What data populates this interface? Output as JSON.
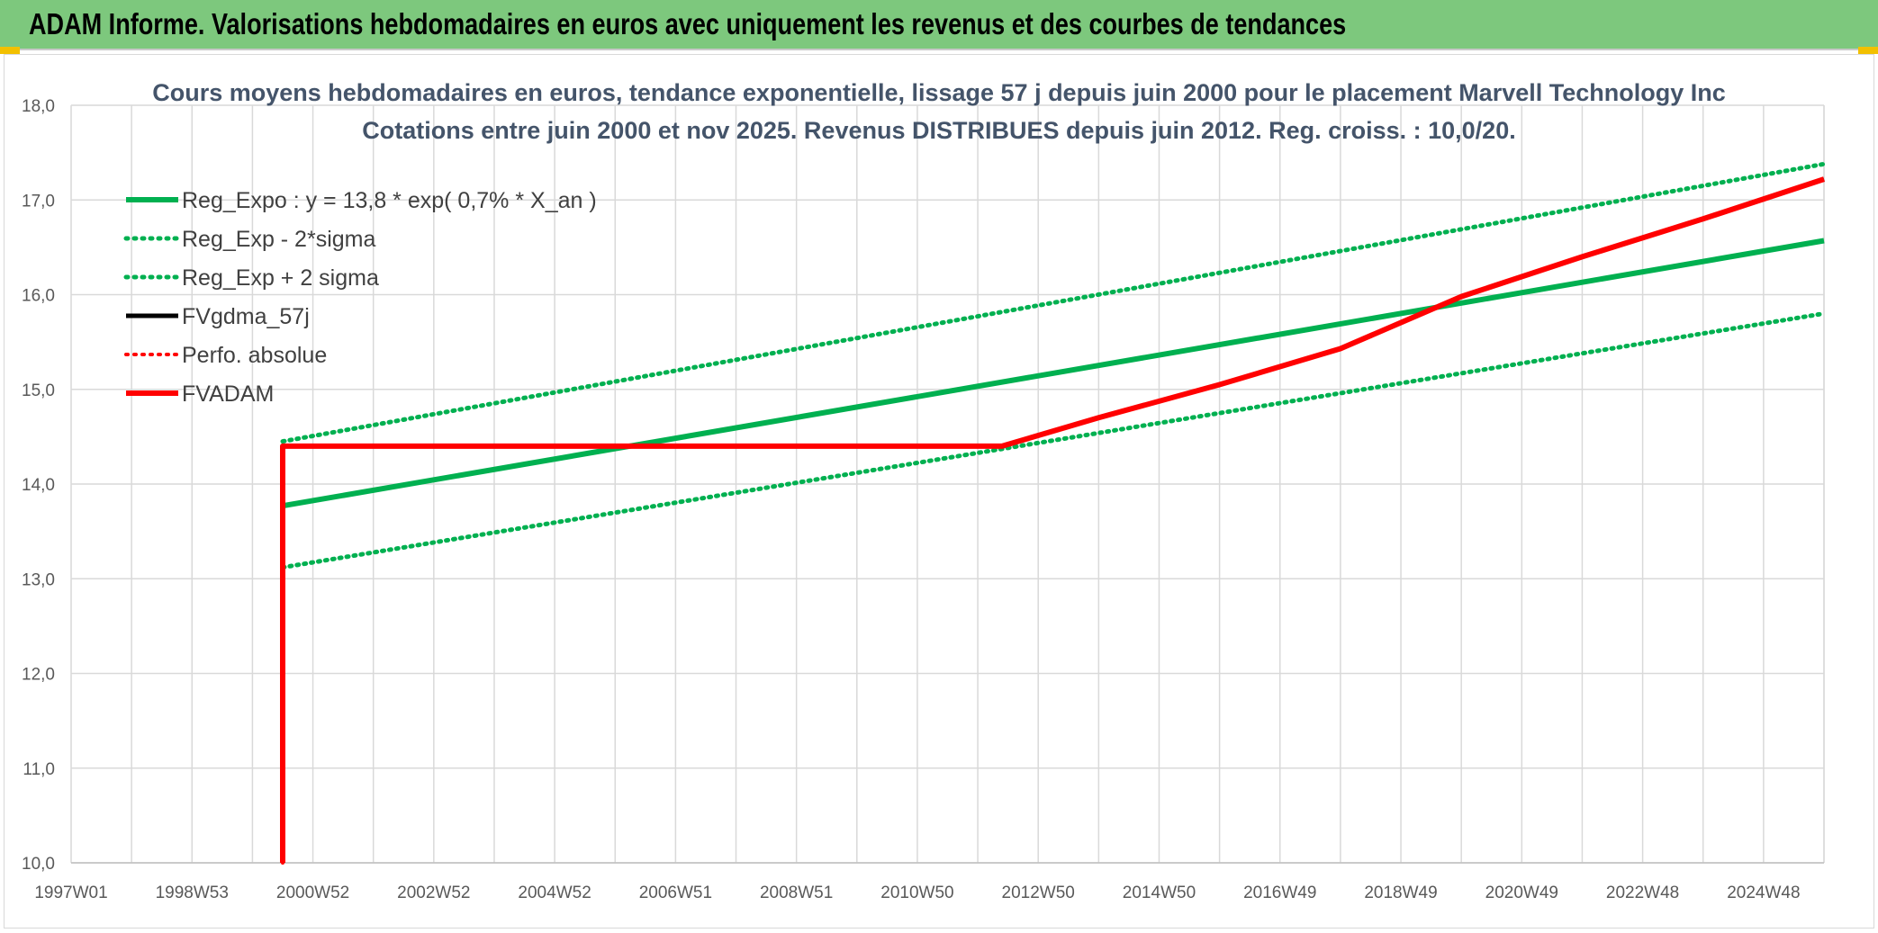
{
  "banner": {
    "title": "ADAM Informe. Valorisations hebdomadaires en euros avec uniquement les revenus et des courbes de tendances",
    "color": "#7dc87d"
  },
  "chart_data": {
    "type": "line",
    "title": "Cours moyens hebdomadaires en euros, tendance exponentielle, lissage 57 j depuis juin 2000 pour le placement Marvell Technology Inc",
    "subtitle": "Cotations entre juin 2000 et nov 2025. Revenus DISTRIBUES depuis juin 2012. Reg. croiss. : 10,0/20.",
    "xlabel": "",
    "ylabel": "",
    "ylim": [
      10,
      18
    ],
    "y_ticks": [
      "10,0",
      "11,0",
      "12,0",
      "13,0",
      "14,0",
      "15,0",
      "16,0",
      "17,0",
      "18,0"
    ],
    "x_ticks": [
      "1997W01",
      "1998W53",
      "2000W52",
      "2002W52",
      "2004W52",
      "2006W51",
      "2008W51",
      "2010W50",
      "2012W50",
      "2014W50",
      "2016W49",
      "2018W49",
      "2020W49",
      "2022W48",
      "2024W48"
    ],
    "x_tick_years": [
      1997.0,
      1999.0,
      2001.0,
      2003.0,
      2005.0,
      2007.0,
      2009.0,
      2011.0,
      2013.0,
      2015.0,
      2017.0,
      2019.0,
      2021.0,
      2023.0,
      2025.0
    ],
    "xlim": [
      1997.0,
      2026.0
    ],
    "grid": true,
    "legend_position": "top-left",
    "series": [
      {
        "name": "Reg_Expo : y = 13,8 * exp( 0,7% *  X_an )",
        "color": "#00b050",
        "style": "solid",
        "width": 6,
        "x": [
          2000.5,
          2026.0
        ],
        "values": [
          13.77,
          16.57
        ]
      },
      {
        "name": "Reg_Exp - 2*sigma",
        "color": "#00b050",
        "style": "dotted",
        "width": 5,
        "x": [
          2000.5,
          2026.0
        ],
        "values": [
          13.12,
          15.8
        ]
      },
      {
        "name": "Reg_Exp + 2 sigma",
        "color": "#00b050",
        "style": "dotted",
        "width": 5,
        "x": [
          2000.5,
          2026.0
        ],
        "values": [
          14.45,
          17.38
        ]
      },
      {
        "name": "FVgdma_57j",
        "color": "#000000",
        "style": "solid",
        "width": 5,
        "x": [
          2000.5,
          2000.5,
          2012.4,
          2014.0,
          2016.0,
          2018.0,
          2020.0,
          2022.0,
          2024.0,
          2026.0
        ],
        "values": [
          10.0,
          14.4,
          14.4,
          14.7,
          15.05,
          15.43,
          15.98,
          16.4,
          16.8,
          17.22
        ]
      },
      {
        "name": "Perfo. absolue",
        "color": "#ff0000",
        "style": "dotted",
        "width": 4,
        "x": [
          2000.5,
          2000.5,
          2012.4,
          2014.0,
          2016.0,
          2018.0,
          2020.0,
          2022.0,
          2024.0,
          2026.0
        ],
        "values": [
          10.0,
          14.4,
          14.4,
          14.7,
          15.05,
          15.43,
          15.98,
          16.4,
          16.8,
          17.22
        ]
      },
      {
        "name": "FVADAM",
        "color": "#ff0000",
        "style": "solid",
        "width": 6,
        "x": [
          2000.5,
          2000.5,
          2012.4,
          2014.0,
          2016.0,
          2018.0,
          2020.0,
          2022.0,
          2024.0,
          2026.0
        ],
        "values": [
          10.0,
          14.4,
          14.4,
          14.7,
          15.05,
          15.43,
          15.98,
          16.4,
          16.8,
          17.22
        ]
      }
    ]
  }
}
